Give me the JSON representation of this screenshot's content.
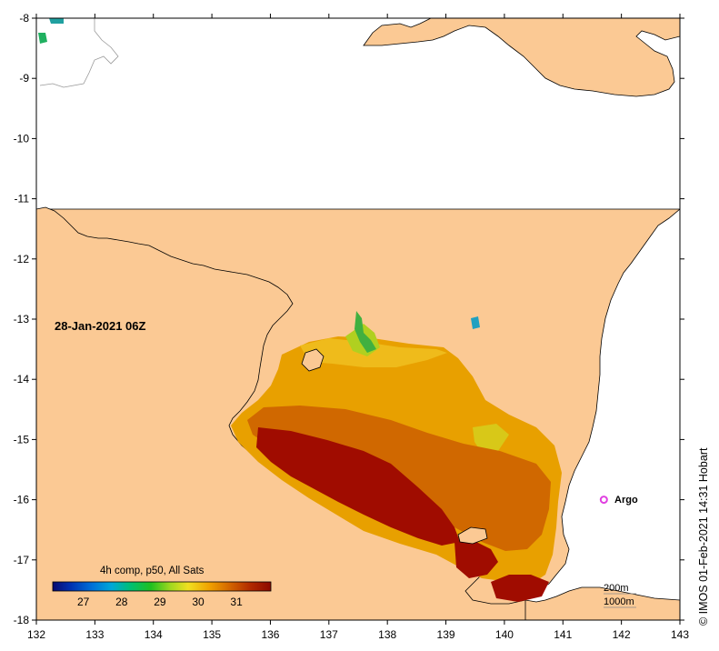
{
  "map": {
    "lon_range": [
      132,
      143
    ],
    "lat_range": [
      -18,
      -8
    ],
    "lon_ticks": [
      "132",
      "133",
      "134",
      "135",
      "136",
      "137",
      "138",
      "139",
      "140",
      "141",
      "142",
      "143"
    ],
    "lat_ticks": [
      "-8",
      "-9",
      "-10",
      "-11",
      "-12",
      "-13",
      "-14",
      "-15",
      "-16",
      "-17",
      "-18"
    ],
    "date_label": "28-Jan-2021 06Z",
    "credit": "© IMOS 01-Feb-2021 14:31 Hobart",
    "scale": {
      "contour_200": "200m",
      "contour_1000": "1000m"
    },
    "argo": {
      "label": "Argo",
      "lon": 141.7,
      "lat": -16.0
    }
  },
  "legend": {
    "title": "4h comp, p50, All Sats",
    "ticks": [
      "27",
      "28",
      "29",
      "30",
      "31"
    ],
    "range": [
      26.2,
      31.9
    ]
  },
  "colors": {
    "land": "#fbc994",
    "ocean": "#ffffff",
    "sst_hot": "#a00c00",
    "argo": "#e040e0"
  }
}
